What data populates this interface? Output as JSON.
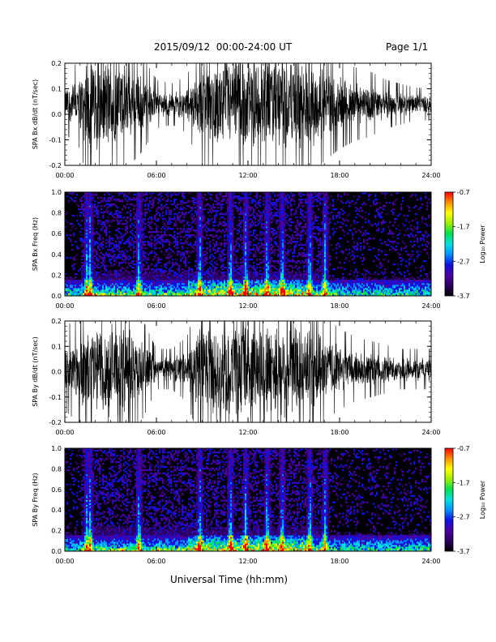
{
  "header": {
    "title": "2015/09/12  00:00-24:00 UT",
    "page": "Page 1/1"
  },
  "x_axis_title": "Universal Time (hh:mm)",
  "chart_data": [
    {
      "type": "line",
      "ylabel": "SPA Bx dB/dt (nT/sec)",
      "xlim": [
        "00:00",
        "24:00"
      ],
      "ylim": [
        -0.2,
        0.2
      ],
      "x_ticks": [
        "00:00",
        "06:00",
        "12:00",
        "18:00",
        "24:00"
      ],
      "y_ticks": [
        "-0.2",
        "-0.1",
        "0.0",
        "0.1",
        "0.2"
      ],
      "envelope_hours": [
        0,
        1,
        1.5,
        2,
        3,
        4,
        5,
        6,
        7,
        8,
        9,
        10,
        11,
        12,
        13,
        14,
        15,
        16,
        17,
        18,
        19,
        20,
        21,
        22,
        23,
        24
      ],
      "envelope_amplitude": [
        0.07,
        0.11,
        0.2,
        0.2,
        0.2,
        0.16,
        0.12,
        0.06,
        0.05,
        0.07,
        0.16,
        0.17,
        0.2,
        0.2,
        0.2,
        0.2,
        0.2,
        0.18,
        0.14,
        0.11,
        0.09,
        0.08,
        0.06,
        0.05,
        0.04,
        0.04
      ],
      "baseline": 0.04,
      "color": "#000000"
    },
    {
      "type": "heatmap",
      "ylabel": "SPA Bx Freq (Hz)",
      "xlim": [
        "00:00",
        "24:00"
      ],
      "ylim": [
        0.0,
        1.0
      ],
      "x_ticks": [
        "00:00",
        "06:00",
        "12:00",
        "18:00",
        "24:00"
      ],
      "y_ticks": [
        "0.0",
        "0.2",
        "0.4",
        "0.6",
        "0.8",
        "1.0"
      ],
      "colorbar": {
        "label": "Log₁₀ Power",
        "ticks": [
          "-0.7",
          "-1.7",
          "-2.7",
          "-3.7"
        ],
        "range": [
          -3.7,
          -0.7
        ]
      },
      "colors": [
        "#000000",
        "#2a0060",
        "#4b00a0",
        "#1010e0",
        "#0090ff",
        "#00e0e0",
        "#00e050",
        "#a0f000",
        "#ffff00",
        "#ff9000",
        "#ff0000"
      ],
      "intense_hours": [
        1.4,
        1.6,
        4.8,
        8.8,
        10.8,
        11.8,
        13.2,
        14.2,
        16.0,
        17.0
      ]
    },
    {
      "type": "line",
      "ylabel": "SPA By dB/dt (nT/sec)",
      "xlim": [
        "00:00",
        "24:00"
      ],
      "ylim": [
        -0.2,
        0.2
      ],
      "x_ticks": [
        "00:00",
        "06:00",
        "12:00",
        "18:00",
        "24:00"
      ],
      "y_ticks": [
        "-0.2",
        "-0.1",
        "0.0",
        "0.1",
        "0.2"
      ],
      "envelope_hours": [
        0,
        1,
        1.5,
        2,
        3,
        4,
        5,
        6,
        7,
        8,
        9,
        10,
        11,
        12,
        13,
        14,
        15,
        16,
        17,
        18,
        19,
        20,
        21,
        22,
        23,
        24
      ],
      "envelope_amplitude": [
        0.1,
        0.14,
        0.2,
        0.2,
        0.2,
        0.17,
        0.13,
        0.05,
        0.05,
        0.08,
        0.2,
        0.18,
        0.2,
        0.2,
        0.2,
        0.2,
        0.2,
        0.18,
        0.13,
        0.1,
        0.08,
        0.07,
        0.06,
        0.05,
        0.05,
        0.05
      ],
      "baseline": 0.01,
      "color": "#000000"
    },
    {
      "type": "heatmap",
      "ylabel": "SPA By Freq (Hz)",
      "xlim": [
        "00:00",
        "24:00"
      ],
      "ylim": [
        0.0,
        1.0
      ],
      "x_ticks": [
        "00:00",
        "06:00",
        "12:00",
        "18:00",
        "24:00"
      ],
      "y_ticks": [
        "0.0",
        "0.2",
        "0.4",
        "0.6",
        "0.8",
        "1.0"
      ],
      "colorbar": {
        "label": "Log₁₀ Power",
        "ticks": [
          "-0.7",
          "-1.7",
          "-2.7",
          "-3.7"
        ],
        "range": [
          -3.7,
          -0.7
        ]
      },
      "colors": [
        "#000000",
        "#2a0060",
        "#4b00a0",
        "#1010e0",
        "#0090ff",
        "#00e0e0",
        "#00e050",
        "#a0f000",
        "#ffff00",
        "#ff9000",
        "#ff0000"
      ],
      "intense_hours": [
        1.4,
        1.6,
        4.8,
        8.8,
        10.8,
        11.8,
        13.2,
        14.2,
        16.0,
        17.0
      ]
    }
  ]
}
